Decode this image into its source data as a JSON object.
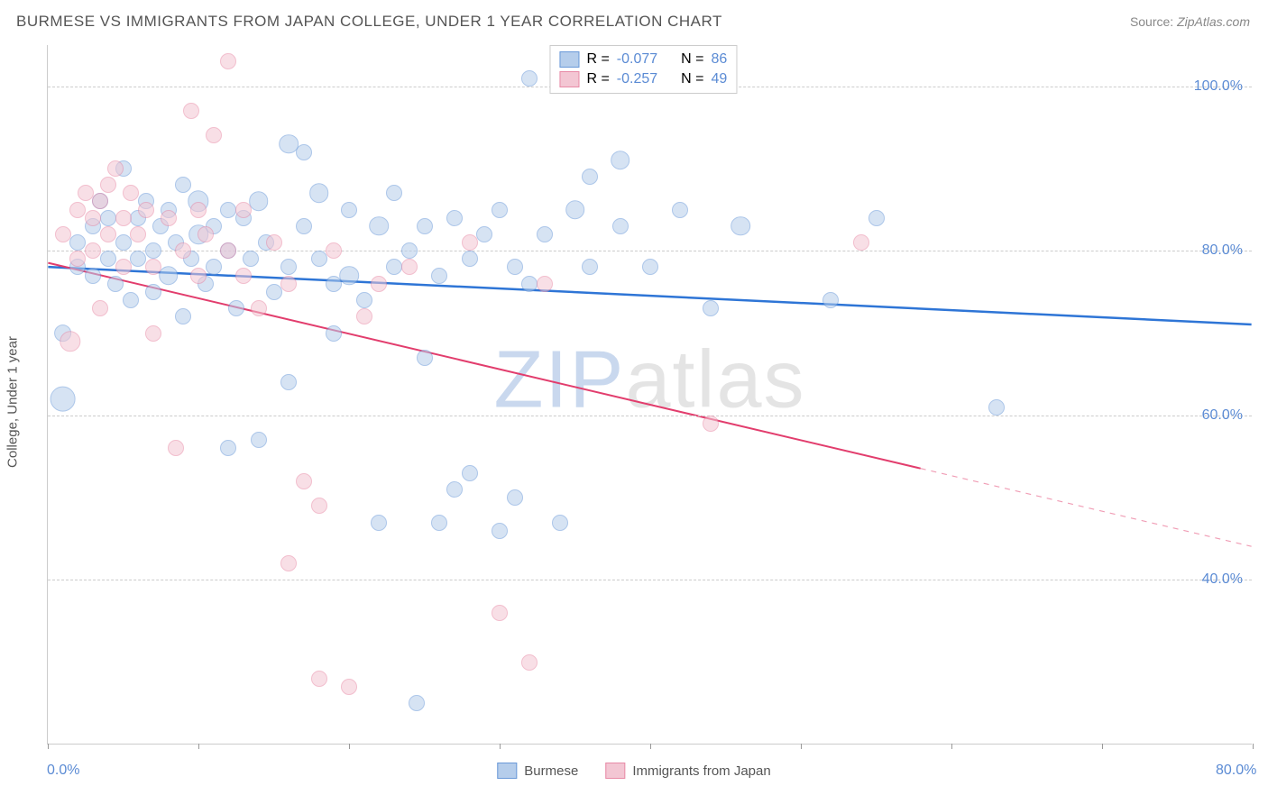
{
  "title": "BURMESE VS IMMIGRANTS FROM JAPAN COLLEGE, UNDER 1 YEAR CORRELATION CHART",
  "source_prefix": "Source: ",
  "source_name": "ZipAtlas.com",
  "y_axis_title": "College, Under 1 year",
  "watermark": {
    "z": "ZIP",
    "rest": "atlas"
  },
  "chart": {
    "type": "scatter",
    "background_color": "#ffffff",
    "grid_color": "#cccccc",
    "axis_color": "#cccccc",
    "tick_label_color": "#5b8bd4",
    "xlim": [
      0,
      80
    ],
    "ylim": [
      20,
      105
    ],
    "x_ticks": [
      0,
      10,
      20,
      30,
      40,
      50,
      60,
      70,
      80
    ],
    "x_tick_labels": {
      "0": "0.0%",
      "80": "80.0%"
    },
    "y_gridlines": [
      40,
      60,
      80,
      100
    ],
    "y_tick_labels": {
      "40": "40.0%",
      "60": "60.0%",
      "80": "80.0%",
      "100": "100.0%"
    },
    "point_base_radius": 9,
    "series": [
      {
        "name": "Burmese",
        "fill": "#b5cdeb",
        "stroke": "#6a99d8",
        "fill_opacity": 0.55,
        "R": "-0.077",
        "N": "86",
        "trend": {
          "x1": 0,
          "y1": 78,
          "x2": 80,
          "y2": 71,
          "color": "#2e75d6",
          "width": 2.5,
          "solid_until_x": 80
        },
        "points": [
          [
            1,
            62,
            1.6
          ],
          [
            1,
            70,
            1.1
          ],
          [
            2,
            78,
            1.0
          ],
          [
            2,
            81,
            1.0
          ],
          [
            3,
            83,
            1.0
          ],
          [
            3,
            77,
            1.0
          ],
          [
            3.5,
            86,
            1.0
          ],
          [
            4,
            84,
            1.0
          ],
          [
            4,
            79,
            1.0
          ],
          [
            4.5,
            76,
            1.0
          ],
          [
            5,
            81,
            1.0
          ],
          [
            5,
            90,
            1.0
          ],
          [
            5.5,
            74,
            1.0
          ],
          [
            6,
            84,
            1.0
          ],
          [
            6,
            79,
            1.0
          ],
          [
            6.5,
            86,
            1.0
          ],
          [
            7,
            80,
            1.0
          ],
          [
            7,
            75,
            1.0
          ],
          [
            7.5,
            83,
            1.0
          ],
          [
            8,
            77,
            1.2
          ],
          [
            8,
            85,
            1.0
          ],
          [
            8.5,
            81,
            1.0
          ],
          [
            9,
            72,
            1.0
          ],
          [
            9,
            88,
            1.0
          ],
          [
            9.5,
            79,
            1.0
          ],
          [
            10,
            82,
            1.2
          ],
          [
            10,
            86,
            1.3
          ],
          [
            10.5,
            76,
            1.0
          ],
          [
            11,
            83,
            1.0
          ],
          [
            11,
            78,
            1.0
          ],
          [
            12,
            85,
            1.0
          ],
          [
            12,
            80,
            1.0
          ],
          [
            12,
            56,
            1.0
          ],
          [
            12.5,
            73,
            1.0
          ],
          [
            13,
            84,
            1.0
          ],
          [
            13.5,
            79,
            1.0
          ],
          [
            14,
            86,
            1.2
          ],
          [
            14,
            57,
            1.0
          ],
          [
            14.5,
            81,
            1.0
          ],
          [
            15,
            75,
            1.0
          ],
          [
            16,
            93,
            1.2
          ],
          [
            16,
            78,
            1.0
          ],
          [
            16,
            64,
            1.0
          ],
          [
            17,
            92,
            1.0
          ],
          [
            17,
            83,
            1.0
          ],
          [
            18,
            79,
            1.0
          ],
          [
            18,
            87,
            1.2
          ],
          [
            19,
            76,
            1.0
          ],
          [
            19,
            70,
            1.0
          ],
          [
            20,
            77,
            1.2
          ],
          [
            20,
            85,
            1.0
          ],
          [
            21,
            74,
            1.0
          ],
          [
            22,
            83,
            1.2
          ],
          [
            22,
            47,
            1.0
          ],
          [
            23,
            78,
            1.0
          ],
          [
            23,
            87,
            1.0
          ],
          [
            24,
            80,
            1.0
          ],
          [
            24.5,
            25,
            1.0
          ],
          [
            25,
            83,
            1.0
          ],
          [
            25,
            67,
            1.0
          ],
          [
            26,
            77,
            1.0
          ],
          [
            26,
            47,
            1.0
          ],
          [
            27,
            84,
            1.0
          ],
          [
            27,
            51,
            1.0
          ],
          [
            28,
            79,
            1.0
          ],
          [
            28,
            53,
            1.0
          ],
          [
            29,
            82,
            1.0
          ],
          [
            30,
            85,
            1.0
          ],
          [
            30,
            46,
            1.0
          ],
          [
            31,
            78,
            1.0
          ],
          [
            31,
            50,
            1.0
          ],
          [
            32,
            101,
            1.0
          ],
          [
            32,
            76,
            1.0
          ],
          [
            33,
            82,
            1.0
          ],
          [
            34,
            47,
            1.0
          ],
          [
            35,
            85,
            1.2
          ],
          [
            36,
            78,
            1.0
          ],
          [
            36,
            89,
            1.0
          ],
          [
            38,
            91,
            1.2
          ],
          [
            38,
            83,
            1.0
          ],
          [
            40,
            78,
            1.0
          ],
          [
            42,
            85,
            1.0
          ],
          [
            44,
            73,
            1.0
          ],
          [
            46,
            83,
            1.2
          ],
          [
            52,
            74,
            1.0
          ],
          [
            55,
            84,
            1.0
          ],
          [
            63,
            61,
            1.0
          ]
        ]
      },
      {
        "name": "Immigrants from Japan",
        "fill": "#f3c6d3",
        "stroke": "#e88aa6",
        "fill_opacity": 0.55,
        "R": "-0.257",
        "N": "49",
        "trend": {
          "x1": 0,
          "y1": 78.5,
          "x2": 80,
          "y2": 44,
          "color": "#e23d6d",
          "width": 2,
          "solid_until_x": 58
        },
        "points": [
          [
            1,
            82,
            1.0
          ],
          [
            1.5,
            69,
            1.3
          ],
          [
            2,
            85,
            1.0
          ],
          [
            2,
            79,
            1.0
          ],
          [
            2.5,
            87,
            1.0
          ],
          [
            3,
            84,
            1.0
          ],
          [
            3,
            80,
            1.0
          ],
          [
            3.5,
            86,
            1.0
          ],
          [
            3.5,
            73,
            1.0
          ],
          [
            4,
            88,
            1.0
          ],
          [
            4,
            82,
            1.0
          ],
          [
            4.5,
            90,
            1.0
          ],
          [
            5,
            84,
            1.0
          ],
          [
            5,
            78,
            1.0
          ],
          [
            5.5,
            87,
            1.0
          ],
          [
            6,
            82,
            1.0
          ],
          [
            6.5,
            85,
            1.0
          ],
          [
            7,
            78,
            1.0
          ],
          [
            7,
            70,
            1.0
          ],
          [
            8,
            84,
            1.0
          ],
          [
            8.5,
            56,
            1.0
          ],
          [
            9,
            80,
            1.0
          ],
          [
            9.5,
            97,
            1.0
          ],
          [
            10,
            77,
            1.0
          ],
          [
            10,
            85,
            1.0
          ],
          [
            10.5,
            82,
            1.0
          ],
          [
            11,
            94,
            1.0
          ],
          [
            12,
            103,
            1.0
          ],
          [
            12,
            80,
            1.0
          ],
          [
            13,
            85,
            1.0
          ],
          [
            13,
            77,
            1.0
          ],
          [
            14,
            73,
            1.0
          ],
          [
            15,
            81,
            1.0
          ],
          [
            16,
            42,
            1.0
          ],
          [
            16,
            76,
            1.0
          ],
          [
            17,
            52,
            1.0
          ],
          [
            18,
            49,
            1.0
          ],
          [
            18,
            28,
            1.0
          ],
          [
            19,
            80,
            1.0
          ],
          [
            20,
            27,
            1.0
          ],
          [
            21,
            72,
            1.0
          ],
          [
            22,
            76,
            1.0
          ],
          [
            24,
            78,
            1.0
          ],
          [
            28,
            81,
            1.0
          ],
          [
            30,
            36,
            1.0
          ],
          [
            32,
            30,
            1.0
          ],
          [
            33,
            76,
            1.0
          ],
          [
            44,
            59,
            1.0
          ],
          [
            54,
            81,
            1.0
          ]
        ]
      }
    ]
  },
  "legend_top": {
    "label_R": "R =",
    "label_N": "N ="
  },
  "legend_bottom": {
    "items": [
      "Burmese",
      "Immigrants from Japan"
    ]
  }
}
